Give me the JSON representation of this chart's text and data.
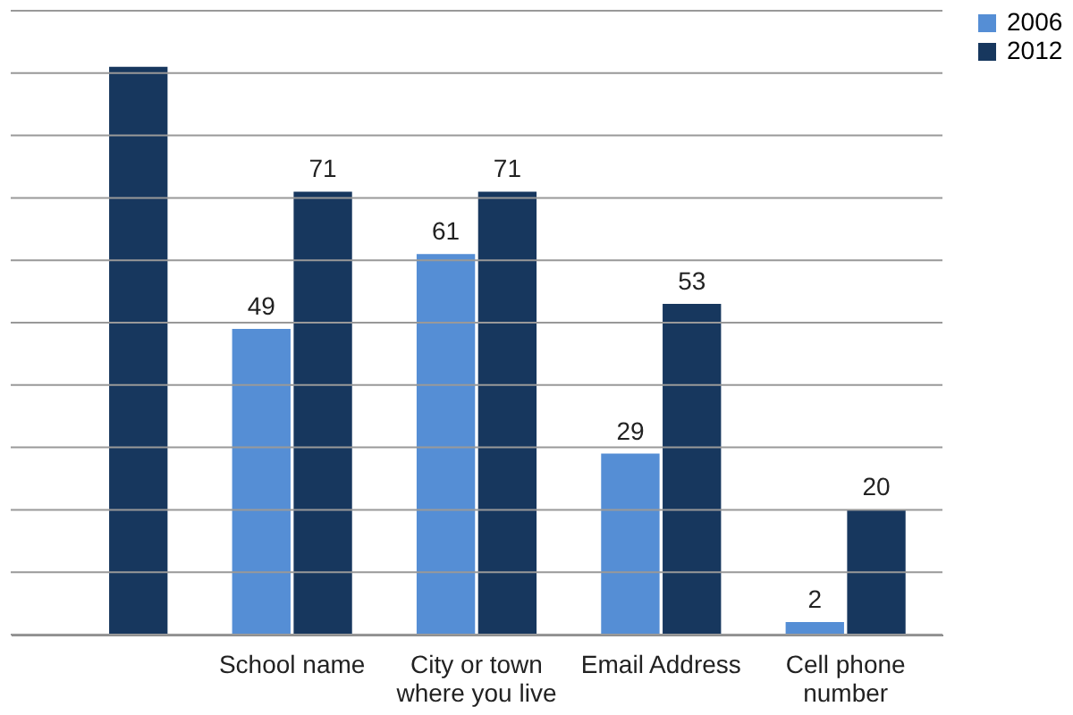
{
  "chart_data": {
    "type": "bar",
    "categories": [
      null,
      "School name",
      "City or town\nwhere you live",
      "Email Address",
      "Cell phone\nnumber"
    ],
    "series": [
      {
        "name": "2006",
        "color": "#558ed5",
        "values": [
          null,
          49,
          61,
          29,
          2
        ],
        "value_labels": [
          null,
          "49",
          "61",
          "29",
          "2"
        ]
      },
      {
        "name": "2012",
        "color": "#17375e",
        "values": [
          91,
          71,
          71,
          53,
          20
        ],
        "value_labels": [
          null,
          "71",
          "71",
          "53",
          "20"
        ]
      }
    ],
    "ylim": [
      0,
      100
    ],
    "yticks": [
      {
        "value": 0,
        "label": null
      },
      {
        "value": 10,
        "label": null
      },
      {
        "value": 20,
        "label": null
      },
      {
        "value": 30,
        "label": null
      },
      {
        "value": 40,
        "label": null
      },
      {
        "value": 50,
        "label": null
      },
      {
        "value": 60,
        "label": null
      },
      {
        "value": 70,
        "label": null
      },
      {
        "value": 80,
        "label": null
      },
      {
        "value": 90,
        "label": null
      },
      {
        "value": 100,
        "label": null
      }
    ],
    "tick_labels": "x",
    "grid": "y",
    "legend": "right"
  }
}
